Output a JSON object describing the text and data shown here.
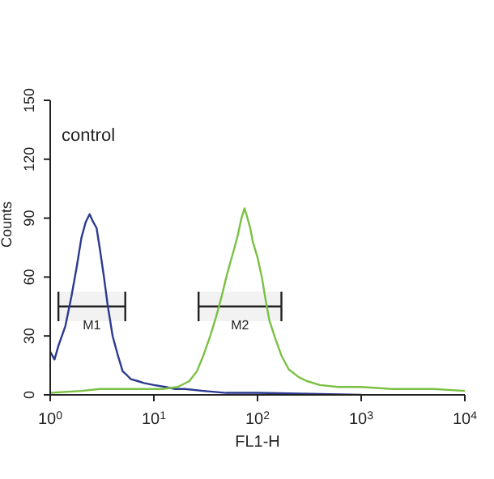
{
  "chart_data": {
    "type": "line",
    "xlabel": "FL1-H",
    "ylabel": "Counts",
    "log": "x",
    "marker": "none",
    "line_style": "solid",
    "xlim": [
      1,
      10000
    ],
    "xticks": [
      {
        "value": 1,
        "label": "10$^{0}$"
      },
      {
        "value": 10,
        "label": "10$^{1}$"
      },
      {
        "value": 100,
        "label": "10$^{2}$"
      },
      {
        "value": 1000,
        "label": "10$^{3}$"
      },
      {
        "value": 10000,
        "label": "10$^{4}$"
      }
    ],
    "ylim": [
      0,
      150
    ],
    "yticks": [
      0,
      30,
      60,
      90,
      120,
      150
    ],
    "annotations": [
      "control"
    ],
    "bands": [
      {
        "axis": "x",
        "from": 1.2,
        "to": 5.3,
        "label": "M1",
        "color": "#222222"
      },
      {
        "axis": "x",
        "from": 27,
        "to": 170,
        "label": "M2",
        "color": "#222222"
      }
    ],
    "series": [
      {
        "color": "#2b3a8f",
        "x": [
          1,
          1.1,
          1.2,
          1.4,
          1.6,
          1.8,
          2,
          2.2,
          2.4,
          2.6,
          2.8,
          3,
          3.3,
          3.6,
          4,
          4.5,
          5,
          5.5,
          6,
          7,
          8,
          10,
          13,
          16,
          20,
          30,
          50,
          100,
          1000
        ],
        "values": [
          22,
          18,
          25,
          35,
          50,
          65,
          80,
          88,
          92,
          88,
          85,
          75,
          60,
          45,
          30,
          20,
          12,
          10,
          8,
          7,
          6,
          5,
          4,
          3,
          3,
          2,
          1,
          1,
          0
        ]
      },
      {
        "color": "#7ac143",
        "x": [
          1,
          2,
          3,
          5,
          8,
          12,
          17,
          22,
          26,
          30,
          35,
          40,
          45,
          50,
          55,
          60,
          65,
          70,
          75,
          80,
          85,
          90,
          100,
          110,
          120,
          130,
          150,
          170,
          200,
          250,
          300,
          400,
          600,
          1000,
          2000,
          5000,
          10000
        ],
        "values": [
          1,
          2,
          3,
          3,
          3,
          3,
          4,
          7,
          12,
          20,
          30,
          40,
          50,
          60,
          68,
          75,
          82,
          90,
          95,
          90,
          85,
          78,
          70,
          60,
          48,
          38,
          28,
          20,
          13,
          9,
          7,
          5,
          4,
          4,
          3,
          3,
          2
        ]
      }
    ]
  }
}
